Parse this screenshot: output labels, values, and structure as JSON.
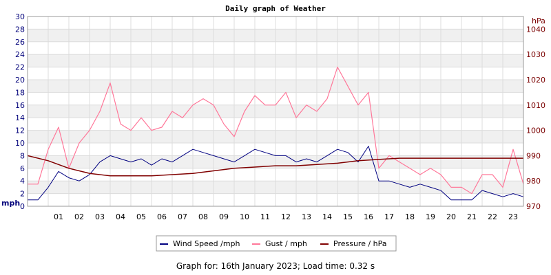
{
  "chart_data": {
    "type": "line",
    "title": "Daily graph of Weather",
    "x_ticks": [
      "01",
      "02",
      "03",
      "04",
      "05",
      "06",
      "07",
      "08",
      "09",
      "10",
      "11",
      "12",
      "13",
      "14",
      "15",
      "16",
      "17",
      "18",
      "19",
      "20",
      "21",
      "22",
      "23"
    ],
    "x_range_hours": [
      0,
      24
    ],
    "left_axis": {
      "unit": "mph",
      "range": [
        0,
        30
      ],
      "ticks": [
        0,
        2,
        4,
        6,
        8,
        10,
        12,
        14,
        16,
        18,
        20,
        22,
        24,
        26,
        28,
        30
      ]
    },
    "right_axis": {
      "unit": "hPa",
      "range": [
        970,
        1045
      ],
      "ticks": [
        970,
        980,
        990,
        1000,
        1010,
        1020,
        1030,
        1040
      ]
    },
    "grid": true,
    "legend_position": "bottom-center",
    "series": [
      {
        "name": "Wind Speed /mph",
        "axis": "left",
        "color": "#000080",
        "x": [
          0,
          0.5,
          1,
          1.5,
          2,
          2.5,
          3,
          3.5,
          4,
          4.5,
          5,
          5.5,
          6,
          6.5,
          7,
          7.5,
          8,
          8.5,
          9,
          9.5,
          10,
          10.5,
          11,
          11.5,
          12,
          12.5,
          13,
          13.5,
          14,
          14.5,
          15,
          15.5,
          16,
          16.5,
          17,
          17.5,
          18,
          18.5,
          19,
          19.5,
          20,
          20.5,
          21,
          21.5,
          22,
          22.5,
          23,
          23.5,
          24
        ],
        "values": [
          1,
          1,
          3,
          5.5,
          4.5,
          4,
          5,
          7,
          8,
          7.5,
          7,
          7.5,
          6.5,
          7.5,
          7,
          8,
          9,
          8.5,
          8,
          7.5,
          7,
          8,
          9,
          8.5,
          8,
          8,
          7,
          7.5,
          7,
          8,
          9,
          8.5,
          7,
          9.5,
          4,
          4,
          3.5,
          3,
          3.5,
          3,
          2.5,
          1,
          1,
          1,
          2.5,
          2,
          1.5,
          2,
          1.5
        ]
      },
      {
        "name": "Gust / mph",
        "axis": "left",
        "color": "#ff7799",
        "x": [
          0,
          0.5,
          1,
          1.5,
          2,
          2.5,
          3,
          3.5,
          4,
          4.5,
          5,
          5.5,
          6,
          6.5,
          7,
          7.5,
          8,
          8.5,
          9,
          9.5,
          10,
          10.5,
          11,
          11.5,
          12,
          12.5,
          13,
          13.5,
          14,
          14.5,
          15,
          15.5,
          16,
          16.5,
          17,
          17.5,
          18,
          18.5,
          19,
          19.5,
          20,
          20.5,
          21,
          21.5,
          22,
          22.5,
          23,
          23.5,
          24
        ],
        "values": [
          3.5,
          3.5,
          9,
          12.5,
          6,
          10,
          12,
          15,
          19.5,
          13,
          12,
          14,
          12,
          12.5,
          15,
          14,
          16,
          17,
          16,
          13,
          11,
          15,
          17.5,
          16,
          16,
          18,
          14,
          16,
          15,
          17,
          22,
          19,
          16,
          18,
          6,
          8,
          7,
          6,
          5,
          6,
          5,
          3,
          3,
          2,
          5,
          5,
          3,
          9,
          3.5
        ]
      },
      {
        "name": "Pressure / hPa",
        "axis": "right",
        "color": "#800000",
        "x": [
          0,
          1,
          2,
          3,
          4,
          5,
          6,
          7,
          8,
          9,
          10,
          11,
          12,
          13,
          14,
          15,
          16,
          17,
          18,
          19,
          20,
          21,
          22,
          23,
          24
        ],
        "values": [
          990,
          988,
          985,
          983,
          982,
          982,
          982,
          982.5,
          983,
          984,
          985,
          985.5,
          986,
          986,
          986.5,
          987,
          988,
          988.5,
          989,
          989,
          989,
          989,
          989,
          989,
          989
        ]
      }
    ]
  },
  "footer": {
    "text": "Graph for: 16th January 2023; Load time: 0.32 s"
  }
}
